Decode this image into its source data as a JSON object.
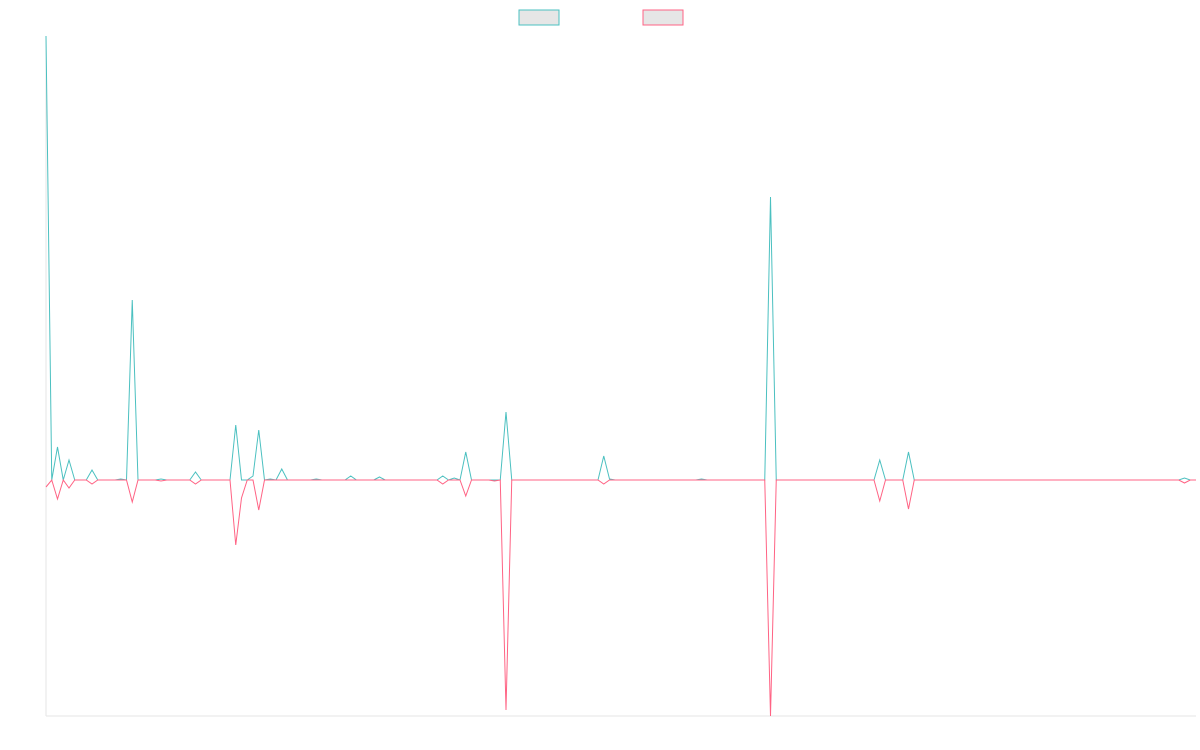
{
  "chart_data": {
    "type": "line",
    "series": [
      {
        "color": "#4bc0c0",
        "values": [
          444,
          0,
          33,
          0,
          20,
          0,
          0,
          0,
          10,
          0,
          0,
          0,
          0,
          1,
          0,
          180,
          0,
          0,
          0,
          0,
          1,
          0,
          0,
          0,
          0,
          0,
          8,
          0,
          0,
          0,
          0,
          0,
          0,
          55,
          0,
          0,
          4,
          50,
          0,
          1,
          0,
          11,
          0,
          0,
          0,
          0,
          0,
          1,
          0,
          0,
          0,
          0,
          0,
          4,
          0,
          0,
          0,
          0,
          3,
          0,
          0,
          0,
          0,
          0,
          0,
          0,
          0,
          0,
          0,
          4,
          0,
          2,
          0,
          28,
          0,
          0,
          0,
          0,
          0,
          0,
          68,
          0,
          0,
          0,
          0,
          0,
          0,
          0,
          0,
          0,
          0,
          0,
          0,
          0,
          0,
          0,
          0,
          24,
          1,
          0,
          0,
          0,
          0,
          0,
          0,
          0,
          0,
          0,
          0,
          0,
          0,
          0,
          0,
          0,
          1,
          0,
          0,
          0,
          0,
          0,
          0,
          0,
          0,
          0,
          0,
          0,
          283,
          0,
          0,
          0,
          0,
          0,
          0,
          0,
          0,
          0,
          0,
          0,
          0,
          0,
          0,
          0,
          0,
          0,
          0,
          20,
          0,
          0,
          0,
          0,
          28,
          0,
          0,
          0,
          0,
          0,
          0,
          0,
          0,
          0,
          0,
          0,
          0,
          0,
          0,
          0,
          0,
          0,
          0,
          0,
          0,
          0,
          0,
          0,
          0,
          0,
          0,
          0,
          0,
          0,
          0,
          0,
          0,
          0,
          0,
          0,
          0,
          0,
          0,
          0,
          0,
          0,
          0,
          0,
          0,
          0,
          0,
          0,
          2,
          0,
          0
        ]
      },
      {
        "color": "#ff6384",
        "values": [
          -7,
          0,
          -19,
          0,
          -8,
          0,
          0,
          0,
          -4,
          0,
          0,
          0,
          0,
          0,
          0,
          -22,
          0,
          0,
          0,
          0,
          -1,
          0,
          0,
          0,
          0,
          0,
          -4,
          0,
          0,
          0,
          0,
          0,
          0,
          -65,
          -18,
          0,
          0,
          -30,
          0,
          0,
          0,
          0,
          0,
          0,
          0,
          0,
          0,
          0,
          0,
          0,
          0,
          0,
          0,
          0,
          0,
          0,
          0,
          0,
          0,
          0,
          0,
          0,
          0,
          0,
          0,
          0,
          0,
          0,
          0,
          -4,
          0,
          0,
          0,
          -16,
          0,
          0,
          0,
          0,
          -1,
          0,
          -230,
          0,
          0,
          0,
          0,
          0,
          0,
          0,
          0,
          0,
          0,
          0,
          0,
          0,
          0,
          0,
          0,
          -4,
          0,
          0,
          0,
          0,
          0,
          0,
          0,
          0,
          0,
          0,
          0,
          0,
          0,
          0,
          0,
          0,
          0,
          0,
          0,
          0,
          0,
          0,
          0,
          0,
          0,
          0,
          0,
          0,
          -236,
          0,
          0,
          0,
          0,
          0,
          0,
          0,
          0,
          0,
          0,
          0,
          0,
          0,
          0,
          0,
          0,
          0,
          0,
          -21,
          0,
          0,
          0,
          0,
          -29,
          0,
          0,
          0,
          0,
          0,
          0,
          0,
          0,
          0,
          0,
          0,
          0,
          0,
          0,
          0,
          0,
          0,
          0,
          0,
          0,
          0,
          0,
          0,
          0,
          0,
          0,
          0,
          0,
          0,
          0,
          0,
          0,
          0,
          0,
          0,
          0,
          0,
          0,
          0,
          0,
          0,
          0,
          0,
          0,
          0,
          0,
          0,
          -3,
          0,
          0
        ]
      }
    ],
    "ylim": [
      -236,
      444
    ],
    "legend": "top"
  }
}
